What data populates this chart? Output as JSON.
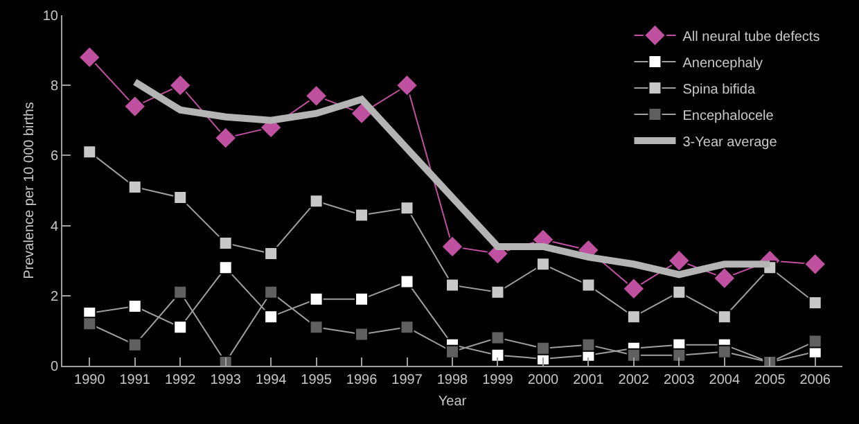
{
  "chart_data": {
    "type": "line",
    "xlabel": "Year",
    "ylabel": "Prevalence per 10 000 births",
    "categories": [
      "1990",
      "1991",
      "1992",
      "1993",
      "1994",
      "1995",
      "1996",
      "1997",
      "1998",
      "1999",
      "2000",
      "2001",
      "2002",
      "2003",
      "2004",
      "2005",
      "2006"
    ],
    "series": [
      {
        "name": "All neural tube defects",
        "color": "#c050a0",
        "marker": "diamond",
        "values": [
          8.8,
          7.4,
          8.0,
          6.5,
          6.8,
          7.7,
          7.2,
          8.0,
          3.4,
          3.2,
          3.6,
          3.3,
          2.2,
          3.0,
          2.5,
          3.0,
          2.9
        ]
      },
      {
        "name": "Anencephaly",
        "color": "#ffffff",
        "marker": "square",
        "values": [
          1.5,
          1.7,
          1.1,
          2.8,
          1.4,
          1.9,
          1.9,
          2.4,
          0.6,
          0.3,
          0.2,
          0.3,
          0.5,
          0.6,
          0.6,
          0.1,
          0.4
        ]
      },
      {
        "name": "Spina bifida",
        "color": "#c8c8c8",
        "marker": "square",
        "values": [
          6.1,
          5.1,
          4.8,
          3.5,
          3.2,
          4.7,
          4.3,
          4.5,
          2.3,
          2.1,
          2.9,
          2.3,
          1.4,
          2.1,
          1.4,
          2.8,
          1.8
        ]
      },
      {
        "name": "Encephalocele",
        "color": "#606060",
        "marker": "square",
        "values": [
          1.2,
          0.6,
          2.1,
          0.1,
          2.1,
          1.1,
          0.9,
          1.1,
          0.4,
          0.8,
          0.5,
          0.6,
          0.3,
          0.3,
          0.4,
          0.1,
          0.7
        ]
      },
      {
        "name": "3-Year average",
        "color": "#b4b4b4",
        "marker": "none",
        "values": [
          null,
          8.1,
          7.3,
          7.1,
          7.0,
          7.2,
          7.6,
          6.2,
          4.8,
          3.4,
          3.4,
          3.1,
          2.9,
          2.6,
          2.9,
          2.9,
          null
        ]
      }
    ],
    "ylim": [
      0,
      10
    ],
    "yticks": [
      0,
      2,
      4,
      6,
      8,
      10
    ],
    "grid": false,
    "legend": "top right"
  }
}
